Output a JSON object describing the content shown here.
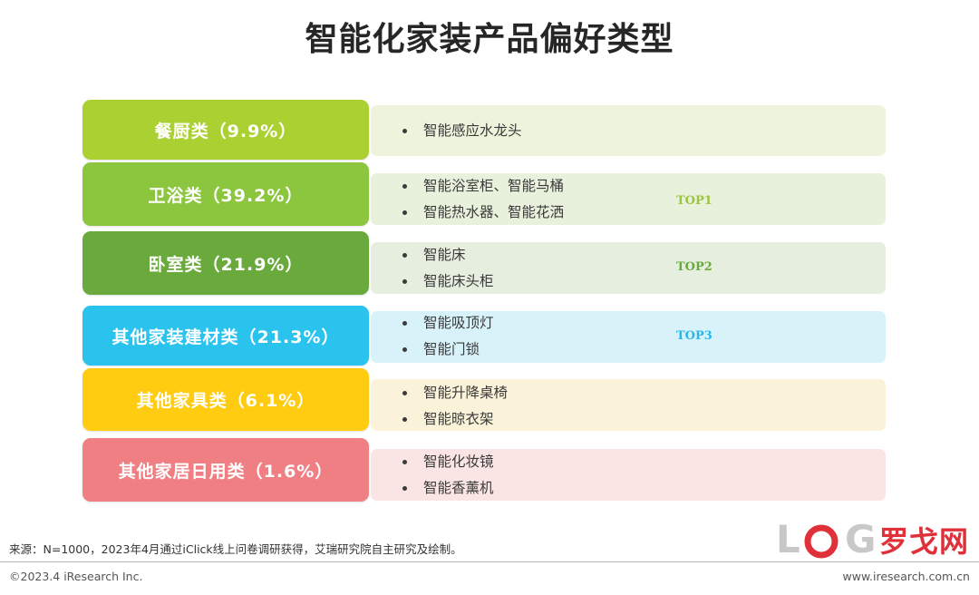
{
  "title": "智能化家装产品偏好类型",
  "rows": [
    {
      "label": "餐厨类（9.9%）",
      "color": "#abd032",
      "panel_color": "#eef4dc",
      "items": [
        "智能感应水龙头"
      ],
      "top": ""
    },
    {
      "label": "卫浴类（39.2%）",
      "color": "#8cc63f",
      "panel_color": "#e8f1dc",
      "items": [
        "智能浴室柜、智能马桶",
        "智能热水器、智能花洒"
      ],
      "top": "TOP1",
      "top_color": "#9bc53d"
    },
    {
      "label": "卧室类（21.9%）",
      "color": "#6aaa3c",
      "panel_color": "#e6efdf",
      "items": [
        "智能床",
        "智能床头柜"
      ],
      "top": "TOP2",
      "top_color": "#6aaa3c"
    },
    {
      "label": "其他家装建材类（21.3%）",
      "color": "#29c3ee",
      "panel_color": "#d8f2fa",
      "items": [
        "智能吸顶灯",
        "智能门锁"
      ],
      "top": "TOP3",
      "top_color": "#29b6e8"
    },
    {
      "label": "其他家具类（6.1%）",
      "color": "#ffcc11",
      "panel_color": "#fbf3d9",
      "items": [
        "智能升降桌椅",
        "智能晾衣架"
      ],
      "top": ""
    },
    {
      "label": "其他家居日用类（1.6%）",
      "color": "#f07f83",
      "panel_color": "#fbe4e4",
      "items": [
        "智能化妆镜",
        "智能香薰机"
      ],
      "top": ""
    }
  ],
  "footer": {
    "source": "来源：N=1000，2023年4月通过iClick线上问卷调研获得，艾瑞研究院自主研究及绘制。",
    "copyright": "©2023.4 iResearch Inc.",
    "website": "www.iresearch.com.cn"
  },
  "logo": {
    "letters": [
      "L",
      "O",
      "G"
    ],
    "cn": "罗戈网",
    "red": "#e0313b",
    "gray": "#c8c8c8"
  }
}
